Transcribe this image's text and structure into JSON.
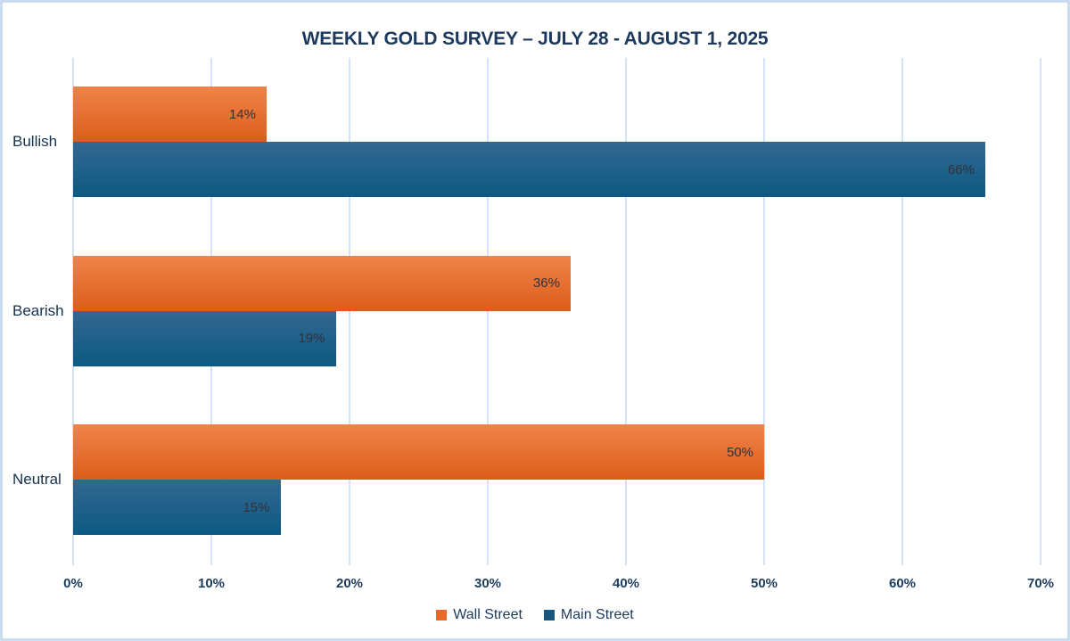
{
  "chart_data": {
    "type": "bar",
    "orientation": "horizontal",
    "title": "WEEKLY GOLD SURVEY – JULY 28 - AUGUST 1, 2025",
    "categories": [
      "Bullish",
      "Bearish",
      "Neutral"
    ],
    "series": [
      {
        "name": "Wall Street",
        "legend_color": "#e8682b",
        "gradient_top": "#ef8448",
        "gradient_bottom": "#dc5d1b",
        "values": [
          14,
          36,
          50
        ]
      },
      {
        "name": "Main Street",
        "legend_color": "#17567d",
        "gradient_top": "#336791",
        "gradient_bottom": "#0c5a82",
        "values": [
          66,
          19,
          15
        ]
      }
    ],
    "value_suffix": "%",
    "xlim": [
      0,
      70
    ],
    "x_ticks": [
      {
        "value": 0,
        "label": "0%"
      },
      {
        "value": 10,
        "label": "10%"
      },
      {
        "value": 20,
        "label": "20%"
      },
      {
        "value": 30,
        "label": "30%"
      },
      {
        "value": 40,
        "label": "40%"
      },
      {
        "value": 50,
        "label": "50%"
      },
      {
        "value": 60,
        "label": "60%"
      },
      {
        "value": 70,
        "label": "70%"
      }
    ],
    "grid": true,
    "legend_position": "bottom",
    "colors": {
      "gridline": "#d3e3f5",
      "frame_border": "#c9dcf0",
      "title_text": "#1d3a5e",
      "axis_text": "#1e3c5f",
      "category_text": "#16324f",
      "data_label_text": "#31313a",
      "background": "#ffffff"
    }
  }
}
